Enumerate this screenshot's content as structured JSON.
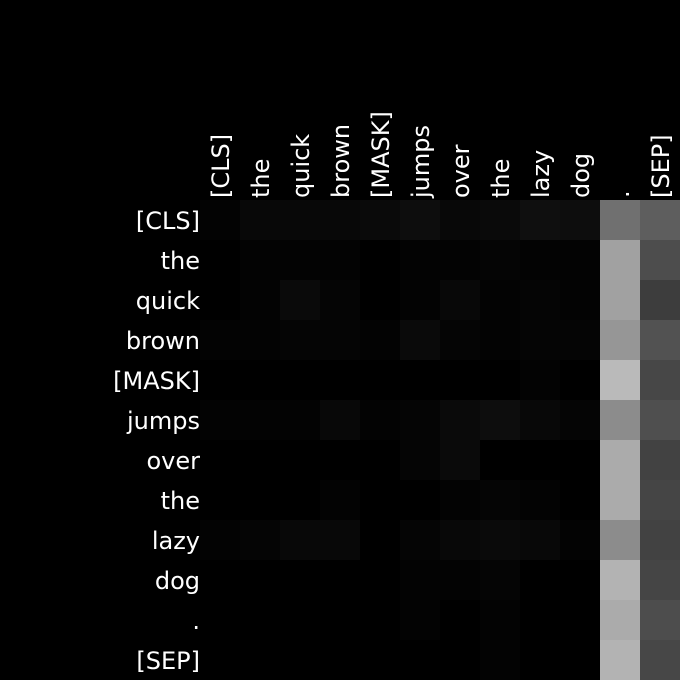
{
  "chart_data": {
    "type": "heatmap",
    "x_tokens": [
      "[CLS]",
      "the",
      "quick",
      "brown",
      "[MASK]",
      "jumps",
      "over",
      "the",
      "lazy",
      "dog",
      ".",
      "[SEP]"
    ],
    "y_tokens": [
      "[CLS]",
      "the",
      "quick",
      "brown",
      "[MASK]",
      "jumps",
      "over",
      "the",
      "lazy",
      "dog",
      ".",
      "[SEP]"
    ],
    "colormap": "grayscale",
    "vmin": 0,
    "vmax": 1,
    "values": [
      [
        0.01,
        0.03,
        0.03,
        0.03,
        0.04,
        0.05,
        0.03,
        0.04,
        0.06,
        0.05,
        0.44,
        0.37
      ],
      [
        0.0,
        0.01,
        0.01,
        0.01,
        0.0,
        0.01,
        0.01,
        0.02,
        0.01,
        0.01,
        0.63,
        0.3
      ],
      [
        0.0,
        0.01,
        0.04,
        0.02,
        0.0,
        0.01,
        0.03,
        0.01,
        0.02,
        0.01,
        0.63,
        0.24
      ],
      [
        0.01,
        0.01,
        0.02,
        0.02,
        0.01,
        0.04,
        0.02,
        0.01,
        0.02,
        0.02,
        0.59,
        0.32
      ],
      [
        0.0,
        0.0,
        0.0,
        0.0,
        0.0,
        0.0,
        0.0,
        0.0,
        0.01,
        0.0,
        0.73,
        0.28
      ],
      [
        0.01,
        0.01,
        0.01,
        0.03,
        0.01,
        0.02,
        0.04,
        0.05,
        0.03,
        0.02,
        0.55,
        0.31
      ],
      [
        0.0,
        0.0,
        0.0,
        0.0,
        0.0,
        0.02,
        0.04,
        0.0,
        0.0,
        0.0,
        0.67,
        0.26
      ],
      [
        0.0,
        0.0,
        0.0,
        0.01,
        0.0,
        0.0,
        0.01,
        0.02,
        0.01,
        0.0,
        0.67,
        0.27
      ],
      [
        0.01,
        0.02,
        0.03,
        0.03,
        0.0,
        0.02,
        0.03,
        0.04,
        0.03,
        0.01,
        0.55,
        0.26
      ],
      [
        0.0,
        0.0,
        0.0,
        0.0,
        0.0,
        0.01,
        0.01,
        0.02,
        0.0,
        0.0,
        0.7,
        0.27
      ],
      [
        0.0,
        0.0,
        0.0,
        0.0,
        0.0,
        0.01,
        0.0,
        0.01,
        0.0,
        0.0,
        0.67,
        0.3
      ],
      [
        0.0,
        0.0,
        0.0,
        0.0,
        0.0,
        0.0,
        0.0,
        0.01,
        0.0,
        0.0,
        0.7,
        0.28
      ]
    ]
  }
}
